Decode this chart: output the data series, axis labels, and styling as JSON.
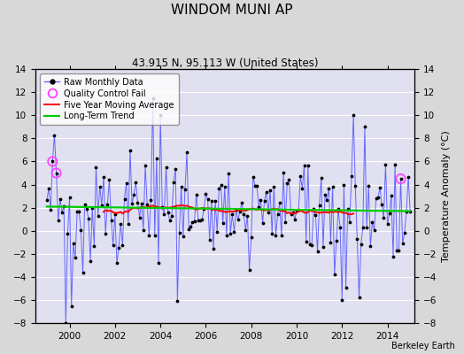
{
  "title": "WINDOM MUNI AP",
  "subtitle": "43.915 N, 95.113 W (United States)",
  "ylabel": "Temperature Anomaly (°C)",
  "credit": "Berkeley Earth",
  "xlim": [
    1998.5,
    2015.2
  ],
  "ylim": [
    -8,
    14
  ],
  "yticks": [
    -8,
    -6,
    -4,
    -2,
    0,
    2,
    4,
    6,
    8,
    10,
    12,
    14
  ],
  "xticks": [
    2000,
    2002,
    2004,
    2006,
    2008,
    2010,
    2012,
    2014
  ],
  "raw_color": "#6666ff",
  "moving_avg_color": "#ff0000",
  "trend_color": "#00cc00",
  "qc_color": "#ff44ff",
  "background_color": "#e0e0f0",
  "grid_color": "#ffffff",
  "figsize": [
    5.24,
    4.0
  ],
  "dpi": 100
}
